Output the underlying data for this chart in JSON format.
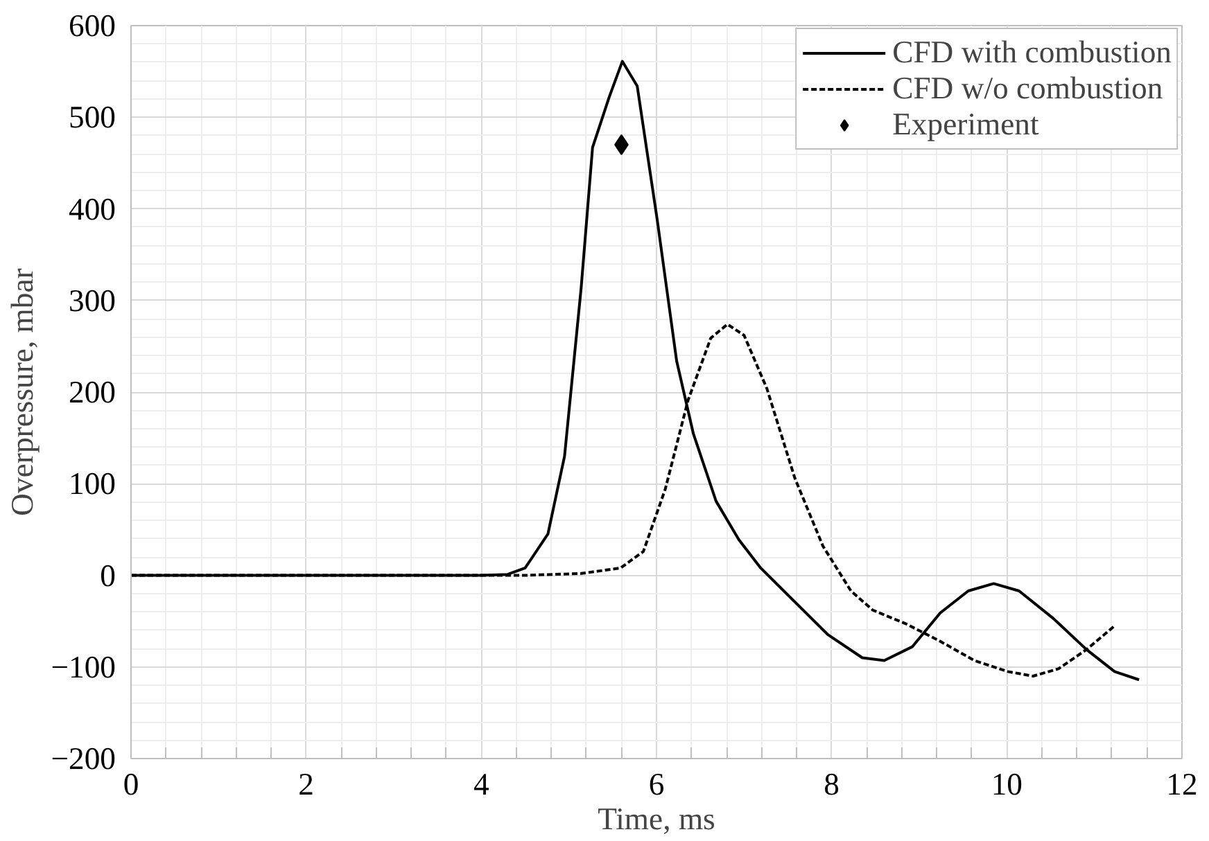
{
  "chart_data": {
    "type": "line",
    "xlabel": "Time, ms",
    "ylabel": "Overpressure, mbar",
    "xlim": [
      0,
      12
    ],
    "ylim": [
      -200,
      600
    ],
    "xticks": [
      0,
      2,
      4,
      6,
      8,
      10,
      12
    ],
    "yticks": [
      -200,
      -100,
      0,
      100,
      200,
      300,
      400,
      500,
      600
    ],
    "grid": true,
    "legend": "top right",
    "series": [
      {
        "name": "CFD with combustion",
        "color": "#000000",
        "line_style": "solid",
        "x": [
          0,
          2,
          4,
          4.3,
          4.5,
          4.76,
          4.95,
          5.14,
          5.27,
          5.46,
          5.61,
          5.78,
          6.01,
          6.23,
          6.42,
          6.68,
          6.94,
          7.19,
          7.58,
          7.96,
          8.35,
          8.6,
          8.92,
          9.24,
          9.56,
          9.85,
          10.14,
          10.53,
          10.91,
          11.23,
          11.51
        ],
        "values": [
          0,
          0,
          0,
          1,
          8,
          45,
          130,
          314,
          467,
          522,
          561,
          534,
          387,
          234,
          155,
          81,
          39,
          8,
          -29,
          -65,
          -90,
          -93,
          -78,
          -41,
          -17,
          -9,
          -17,
          -47,
          -81,
          -105,
          -114
        ]
      },
      {
        "name": "CFD w/o combustion",
        "color": "#000000",
        "line_style": "dashed",
        "x": [
          0,
          2,
          4,
          4.5,
          5.14,
          5.59,
          5.85,
          6.1,
          6.36,
          6.62,
          6.81,
          7.0,
          7.26,
          7.58,
          7.9,
          8.22,
          8.47,
          8.85,
          9.24,
          9.63,
          10.01,
          10.3,
          10.59,
          10.91,
          11.22
        ],
        "values": [
          0,
          0,
          0,
          0,
          2,
          8,
          26,
          94,
          191,
          259,
          274,
          262,
          204,
          106,
          32,
          -17,
          -38,
          -53,
          -72,
          -93,
          -105,
          -110,
          -102,
          -81,
          -56
        ]
      },
      {
        "name": "Experiment",
        "type": "scatter",
        "marker": "diamond",
        "color": "#000000",
        "x": [
          5.6
        ],
        "values": [
          470
        ]
      }
    ]
  }
}
